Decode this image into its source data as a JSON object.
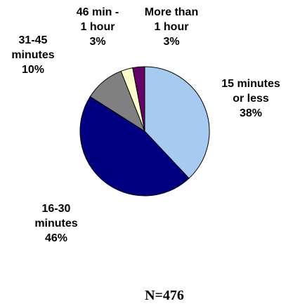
{
  "chart_data": {
    "type": "pie",
    "title": "",
    "start": "12 o'clock",
    "direction": "clockwise",
    "slices": [
      {
        "lines": [
          "15 minutes",
          "or less",
          "38%"
        ],
        "value": 38,
        "color": "#A6CAF0"
      },
      {
        "lines": [
          "16-30",
          "minutes",
          "46%"
        ],
        "value": 46,
        "color": "#000080"
      },
      {
        "lines": [
          "31-45",
          "minutes",
          "10%"
        ],
        "value": 10,
        "color": "#808080"
      },
      {
        "lines": [
          "46 min -",
          "1 hour",
          "3%"
        ],
        "value": 3,
        "color": "#FFFFCC"
      },
      {
        "lines": [
          "More than",
          "1 hour",
          "3%"
        ],
        "value": 3,
        "color": "#660066"
      }
    ],
    "note": "N=476"
  }
}
